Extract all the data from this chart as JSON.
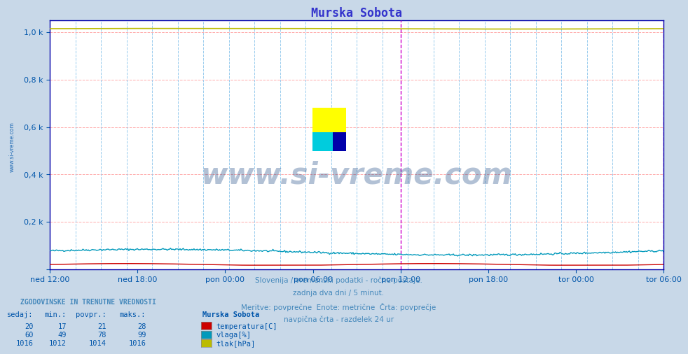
{
  "title": "Murska Sobota",
  "title_color": "#3333cc",
  "bg_color": "#c8d8e8",
  "plot_bg_color": "#ffffff",
  "ytick_labels": [
    "",
    "0,2 k",
    "0,4 k",
    "0,6 k",
    "0,8 k",
    "1,0 k"
  ],
  "ytick_vals": [
    0,
    200,
    400,
    600,
    800,
    1000
  ],
  "ymax": 1050,
  "xtick_labels": [
    "ned 12:00",
    "ned 18:00",
    "pon 00:00",
    "pon 06:00",
    "pon 12:00",
    "pon 18:00",
    "tor 00:00",
    "tor 06:00"
  ],
  "n_points": 576,
  "scale_max": 1020,
  "temperatura_base": 20,
  "temperatura_amp": 4,
  "vlaga_base": 72,
  "vlaga_amp": 12,
  "tlak_base": 1015,
  "tlak_amp": 1.5,
  "temp_color": "#cc0000",
  "vlaga_color": "#0099bb",
  "tlak_color": "#bbbb00",
  "grid_h_color": "#ffaaaa",
  "grid_v_color": "#99ccee",
  "axis_color": "#0000aa",
  "tick_color": "#0055aa",
  "text_color": "#4488bb",
  "watermark": "www.si-vreme.com",
  "watermark_color": "#003377",
  "info_line1": "Slovenija / vremenski podatki - ročne postaje.",
  "info_line2": "zadnja dva dni / 5 minut.",
  "info_line3": "Meritve: povprečne  Enote: metrične  Črta: povprečje",
  "info_line4": "navpična črta - razdelek 24 ur",
  "legend_title": "Murska Sobota",
  "legend_items": [
    {
      "label": "temperatura[C]",
      "color": "#cc0000"
    },
    {
      "label": "vlaga[%]",
      "color": "#0099bb"
    },
    {
      "label": "tlak[hPa]",
      "color": "#bbbb00"
    }
  ],
  "table_headers": [
    "sedaj:",
    "min.:",
    "povpr.:",
    "maks.:"
  ],
  "table_data": [
    [
      20,
      17,
      21,
      28
    ],
    [
      60,
      49,
      78,
      99
    ],
    [
      1016,
      1012,
      1014,
      1016
    ]
  ],
  "table_header": "ZGODOVINSKE IN TRENUTNE VREDNOSTI"
}
